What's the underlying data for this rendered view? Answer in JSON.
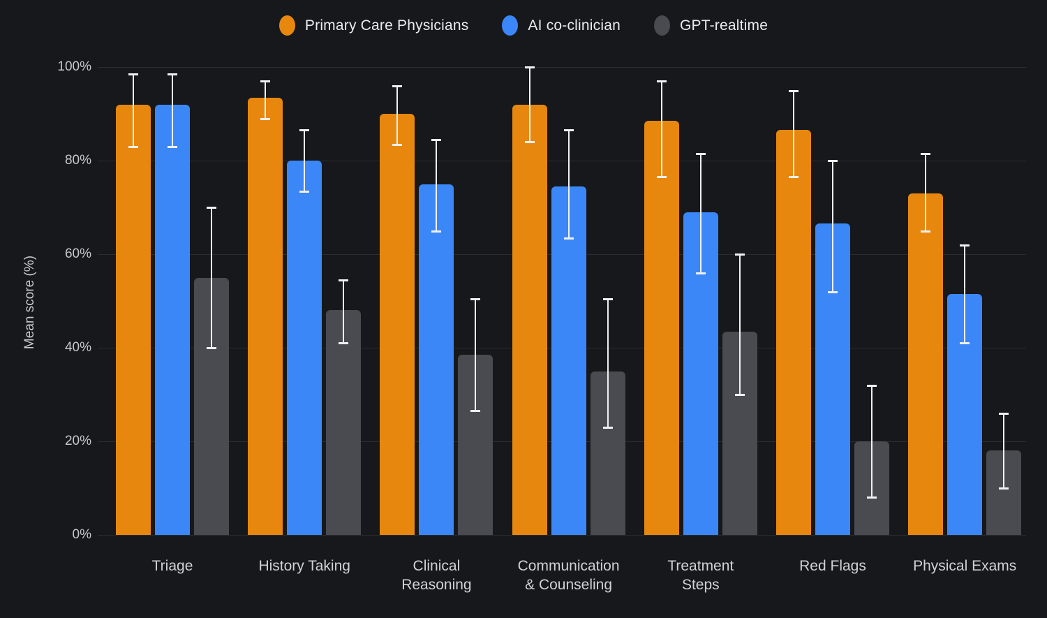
{
  "chart_data": {
    "type": "bar",
    "title": "",
    "ylabel": "Mean score (%)",
    "ylim": [
      0,
      100
    ],
    "yticks": [
      0,
      20,
      40,
      60,
      80,
      100
    ],
    "ytick_suffix": "%",
    "grid": "horizontal",
    "legend_position": "top-center",
    "error_bars": true,
    "categories": [
      [
        "Triage"
      ],
      [
        "History Taking"
      ],
      [
        "Clinical",
        "Reasoning"
      ],
      [
        "Communication",
        "& Counseling"
      ],
      [
        "Treatment",
        "Steps"
      ],
      [
        "Red Flags"
      ],
      [
        "Physical Exams"
      ]
    ],
    "series": [
      {
        "name": "Primary Care Physicians",
        "color": "#E8870E",
        "values": [
          92,
          93.5,
          90,
          92,
          88.5,
          86.5,
          73
        ],
        "error_low": [
          83,
          89,
          83.5,
          84,
          76.5,
          76.5,
          65
        ],
        "error_high": [
          98.5,
          97,
          96,
          100,
          97,
          95,
          81.5
        ]
      },
      {
        "name": "AI co-clinician",
        "color": "#3B87F7",
        "values": [
          92,
          80,
          75,
          74.5,
          69,
          66.5,
          51.5
        ],
        "error_low": [
          83,
          73.5,
          65,
          63.5,
          56,
          52,
          41
        ],
        "error_high": [
          98.5,
          86.5,
          84.5,
          86.5,
          81.5,
          80,
          62
        ]
      },
      {
        "name": "GPT-realtime",
        "color": "#494B50",
        "values": [
          55,
          48,
          38.5,
          35,
          43.5,
          20,
          18
        ],
        "error_low": [
          40,
          41,
          26.5,
          23,
          30,
          8,
          10
        ],
        "error_high": [
          70,
          54.5,
          50.5,
          50.5,
          60,
          32,
          26
        ]
      }
    ],
    "error_bar_color": "#EEF0F2"
  },
  "colors": {
    "background": "#16181B",
    "gridline": "#2A2D31",
    "tick_label": "#C6C9CC",
    "category_label": "#CFD2D6",
    "legend_label": "#E9EBED"
  }
}
